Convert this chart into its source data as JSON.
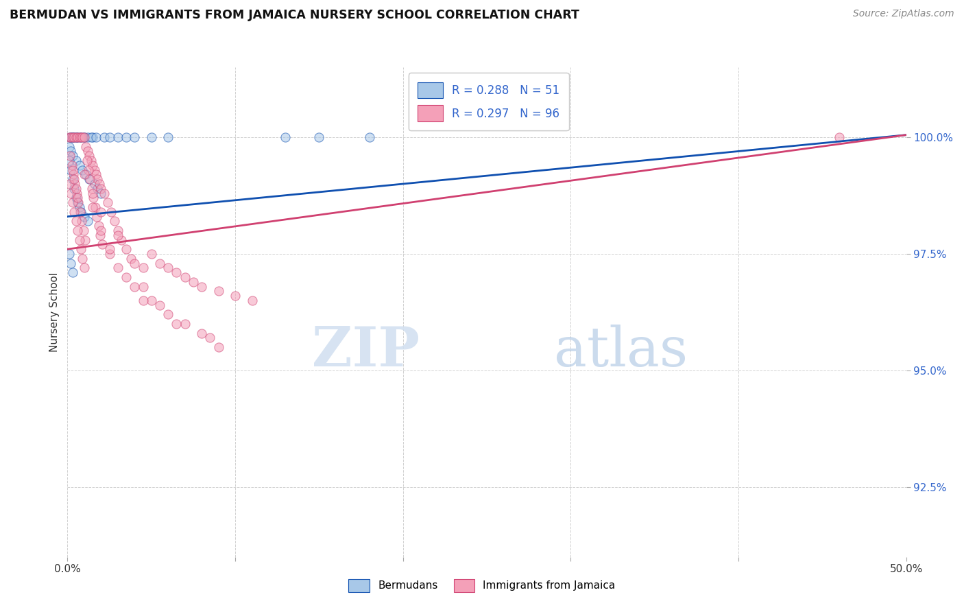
{
  "title": "BERMUDAN VS IMMIGRANTS FROM JAMAICA NURSERY SCHOOL CORRELATION CHART",
  "source": "Source: ZipAtlas.com",
  "ylabel": "Nursery School",
  "y_tick_labels": [
    "92.5%",
    "95.0%",
    "97.5%",
    "100.0%"
  ],
  "y_tick_values": [
    92.5,
    95.0,
    97.5,
    100.0
  ],
  "x_min": 0.0,
  "x_max": 50.0,
  "y_min": 91.0,
  "y_max": 101.5,
  "bermudans_R": 0.288,
  "bermudans_N": 51,
  "jamaica_R": 0.297,
  "jamaica_N": 96,
  "color_blue": "#A8C8E8",
  "color_pink": "#F4A0B8",
  "line_color_blue": "#1050B0",
  "line_color_pink": "#D04070",
  "scatter_alpha": 0.55,
  "scatter_size": 90,
  "watermark_zip": "ZIP",
  "watermark_atlas": "atlas",
  "bermudans_x": [
    0.2,
    0.3,
    0.4,
    0.5,
    0.6,
    0.8,
    1.0,
    1.2,
    1.5,
    0.1,
    0.2,
    0.3,
    0.5,
    0.7,
    0.9,
    1.1,
    1.3,
    1.6,
    1.8,
    2.0,
    0.1,
    0.2,
    0.3,
    0.4,
    0.5,
    0.6,
    0.7,
    0.8,
    1.0,
    1.2,
    0.15,
    0.25,
    0.35,
    0.55,
    0.75,
    0.95,
    1.4,
    1.7,
    2.2,
    2.5,
    3.0,
    3.5,
    4.0,
    5.0,
    6.0,
    0.1,
    0.2,
    0.3,
    13.0,
    15.0,
    18.0
  ],
  "bermudans_y": [
    100.0,
    100.0,
    100.0,
    100.0,
    100.0,
    100.0,
    100.0,
    100.0,
    100.0,
    99.8,
    99.7,
    99.6,
    99.5,
    99.4,
    99.3,
    99.2,
    99.1,
    99.0,
    98.9,
    98.8,
    99.5,
    99.3,
    99.1,
    98.9,
    98.7,
    98.6,
    98.5,
    98.4,
    98.3,
    98.2,
    100.0,
    100.0,
    100.0,
    100.0,
    100.0,
    100.0,
    100.0,
    100.0,
    100.0,
    100.0,
    100.0,
    100.0,
    100.0,
    100.0,
    100.0,
    97.5,
    97.3,
    97.1,
    100.0,
    100.0,
    100.0
  ],
  "jamaica_x": [
    0.1,
    0.2,
    0.3,
    0.4,
    0.5,
    0.6,
    0.7,
    0.8,
    0.9,
    1.0,
    1.1,
    1.2,
    1.3,
    1.4,
    1.5,
    1.6,
    1.7,
    1.8,
    1.9,
    2.0,
    0.15,
    0.25,
    0.35,
    0.45,
    0.55,
    0.65,
    0.75,
    0.85,
    0.95,
    1.05,
    1.15,
    1.25,
    1.35,
    1.45,
    1.55,
    1.65,
    1.75,
    1.85,
    1.95,
    2.05,
    2.2,
    2.4,
    2.6,
    2.8,
    3.0,
    3.2,
    3.5,
    3.8,
    4.0,
    4.5,
    5.0,
    5.5,
    6.0,
    6.5,
    7.0,
    7.5,
    8.0,
    9.0,
    10.0,
    11.0,
    0.1,
    0.2,
    0.3,
    0.4,
    0.5,
    0.6,
    0.7,
    0.8,
    0.9,
    1.0,
    1.5,
    2.0,
    2.5,
    3.0,
    4.0,
    5.0,
    6.0,
    7.0,
    8.0,
    9.0,
    0.3,
    0.4,
    0.5,
    0.6,
    2.5,
    3.5,
    4.5,
    5.5,
    6.5,
    8.5,
    1.0,
    1.5,
    2.0,
    3.0,
    4.5,
    46.0
  ],
  "jamaica_y": [
    100.0,
    100.0,
    100.0,
    100.0,
    100.0,
    100.0,
    100.0,
    100.0,
    100.0,
    100.0,
    99.8,
    99.7,
    99.6,
    99.5,
    99.4,
    99.3,
    99.2,
    99.1,
    99.0,
    98.9,
    99.6,
    99.4,
    99.2,
    99.0,
    98.8,
    98.6,
    98.4,
    98.2,
    98.0,
    97.8,
    99.5,
    99.3,
    99.1,
    98.9,
    98.7,
    98.5,
    98.3,
    98.1,
    97.9,
    97.7,
    98.8,
    98.6,
    98.4,
    98.2,
    98.0,
    97.8,
    97.6,
    97.4,
    97.3,
    97.2,
    97.5,
    97.3,
    97.2,
    97.1,
    97.0,
    96.9,
    96.8,
    96.7,
    96.6,
    96.5,
    99.0,
    98.8,
    98.6,
    98.4,
    98.2,
    98.0,
    97.8,
    97.6,
    97.4,
    97.2,
    98.5,
    98.0,
    97.5,
    97.2,
    96.8,
    96.5,
    96.2,
    96.0,
    95.8,
    95.5,
    99.3,
    99.1,
    98.9,
    98.7,
    97.6,
    97.0,
    96.8,
    96.4,
    96.0,
    95.7,
    99.2,
    98.8,
    98.4,
    97.9,
    96.5,
    100.0
  ]
}
